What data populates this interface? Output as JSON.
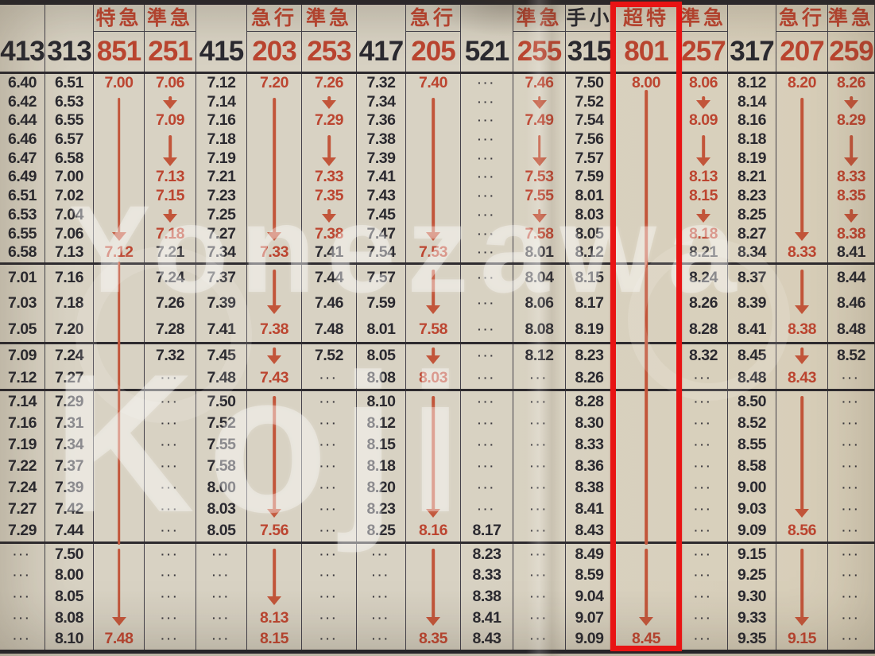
{
  "watermark": {
    "line1": "Yonezawa",
    "line2": "Koji"
  },
  "highlight": {
    "around_train": "801",
    "box_color": "#e81414"
  },
  "colors": {
    "red_ink": "#bc4530",
    "black_ink": "#2b2a30",
    "arrow_red": "#c2553a",
    "paper": "#d8d2c3"
  },
  "legend": {
    "dots_token": "...",
    "black_override_suffix": "|k"
  },
  "columns": [
    {
      "num": "413",
      "ink": "b",
      "label": "",
      "groups": [
        [
          "6.40",
          "6.42",
          "6.44",
          "6.46",
          "6.47",
          "6.49",
          "6.51",
          "6.53",
          "6.55",
          "6.58"
        ],
        [
          "7.01",
          "7.03",
          "7.05"
        ],
        [
          "7.09",
          "7.12"
        ],
        [
          "7.14",
          "7.16",
          "7.19",
          "7.22",
          "7.24",
          "7.27",
          "7.29"
        ],
        [
          "...",
          "...",
          "...",
          "...",
          "..."
        ]
      ],
      "arrows": []
    },
    {
      "num": "313",
      "ink": "b",
      "label": "",
      "groups": [
        [
          "6.51",
          "6.53",
          "6.55",
          "6.57",
          "6.58",
          "7.00",
          "7.02",
          "7.04",
          "7.06",
          "7.13"
        ],
        [
          "7.16",
          "7.18",
          "7.20"
        ],
        [
          "7.24",
          "7.27"
        ],
        [
          "7.29",
          "7.31",
          "7.34",
          "7.37",
          "7.39",
          "7.42",
          "7.44"
        ],
        [
          "7.50",
          "8.00",
          "8.05",
          "8.08",
          "8.10"
        ]
      ],
      "arrows": []
    },
    {
      "num": "851",
      "ink": "r",
      "label": "特急",
      "groups": [
        [
          "7.00",
          "",
          "",
          "",
          "",
          "",
          "",
          "",
          "",
          "7.12"
        ],
        [
          "",
          "",
          ""
        ],
        [
          "",
          ""
        ],
        [
          "",
          "",
          "",
          "",
          "",
          "",
          ""
        ],
        [
          "",
          "",
          "",
          "",
          "7.48"
        ]
      ],
      "arrows": [
        [
          0,
          1,
          8,
          1
        ],
        [
          1,
          0,
          2,
          0
        ],
        [
          2,
          0,
          1,
          0
        ],
        [
          3,
          0,
          6,
          0
        ],
        [
          4,
          0,
          3,
          1
        ]
      ]
    },
    {
      "num": "251",
      "ink": "r",
      "label": "準急",
      "groups": [
        [
          "7.06",
          "",
          "7.09",
          "",
          "",
          "7.13",
          "7.15",
          "",
          "7.18",
          "7.21|k"
        ],
        [
          "7.24|k",
          "7.26|k",
          "7.28|k"
        ],
        [
          "7.32|k",
          "..."
        ],
        [
          "...",
          "...",
          "...",
          "...",
          "...",
          "...",
          "..."
        ],
        [
          "...",
          "...",
          "...",
          "...",
          "..."
        ]
      ],
      "arrows": [
        [
          0,
          1,
          1,
          1
        ],
        [
          0,
          3,
          4,
          1
        ],
        [
          0,
          7,
          7,
          1
        ]
      ]
    },
    {
      "num": "415",
      "ink": "b",
      "label": "",
      "groups": [
        [
          "7.12",
          "7.14",
          "7.16",
          "7.18",
          "7.19",
          "7.21",
          "7.23",
          "7.25",
          "7.27",
          "7.34"
        ],
        [
          "7.37",
          "7.39",
          "7.41"
        ],
        [
          "7.45",
          "7.48"
        ],
        [
          "7.50",
          "7.52",
          "7.55",
          "7.58",
          "8.00",
          "8.03",
          "8.05"
        ],
        [
          "...",
          "...",
          "...",
          "...",
          "..."
        ]
      ],
      "arrows": []
    },
    {
      "num": "203",
      "ink": "r",
      "label": "急行",
      "groups": [
        [
          "7.20",
          "",
          "",
          "",
          "",
          "",
          "",
          "",
          "",
          "7.33"
        ],
        [
          "",
          "",
          "7.38"
        ],
        [
          "",
          "7.43"
        ],
        [
          "",
          "",
          "",
          "",
          "",
          "",
          "7.56"
        ],
        [
          "",
          "",
          "",
          "8.13",
          "8.15"
        ]
      ],
      "arrows": [
        [
          0,
          1,
          8,
          1
        ],
        [
          1,
          0,
          1,
          1
        ],
        [
          2,
          0,
          0,
          1
        ],
        [
          3,
          0,
          5,
          1
        ],
        [
          4,
          0,
          2,
          1
        ]
      ]
    },
    {
      "num": "253",
      "ink": "r",
      "label": "準急",
      "groups": [
        [
          "7.26",
          "",
          "7.29",
          "",
          "",
          "7.33",
          "7.35",
          "",
          "7.38",
          "7.41|k"
        ],
        [
          "7.44|k",
          "7.46|k",
          "7.48|k"
        ],
        [
          "7.52|k",
          "..."
        ],
        [
          "...",
          "...",
          "...",
          "...",
          "...",
          "...",
          "..."
        ],
        [
          "...",
          "...",
          "...",
          "...",
          "..."
        ]
      ],
      "arrows": [
        [
          0,
          1,
          1,
          1
        ],
        [
          0,
          3,
          4,
          1
        ],
        [
          0,
          7,
          7,
          1
        ]
      ]
    },
    {
      "num": "417",
      "ink": "b",
      "label": "",
      "groups": [
        [
          "7.32",
          "7.34",
          "7.36",
          "7.38",
          "7.39",
          "7.41",
          "7.43",
          "7.45",
          "7.47",
          "7.54"
        ],
        [
          "7.57",
          "7.59",
          "8.01"
        ],
        [
          "8.05",
          "8.08"
        ],
        [
          "8.10",
          "8.12",
          "8.15",
          "8.18",
          "8.20",
          "8.23",
          "8.25"
        ],
        [
          "...",
          "...",
          "...",
          "...",
          "..."
        ]
      ],
      "arrows": []
    },
    {
      "num": "205",
      "ink": "r",
      "label": "急行",
      "groups": [
        [
          "7.40",
          "",
          "",
          "",
          "",
          "",
          "",
          "",
          "",
          "7.53"
        ],
        [
          "",
          "",
          "7.58"
        ],
        [
          "",
          "8.03"
        ],
        [
          "",
          "",
          "",
          "",
          "",
          "",
          "8.16"
        ],
        [
          "",
          "",
          "",
          "",
          "8.35"
        ]
      ],
      "arrows": [
        [
          0,
          1,
          8,
          1
        ],
        [
          1,
          0,
          1,
          1
        ],
        [
          2,
          0,
          0,
          1
        ],
        [
          3,
          0,
          5,
          1
        ],
        [
          4,
          0,
          3,
          1
        ]
      ]
    },
    {
      "num": "521",
      "ink": "b",
      "label": "",
      "groups": [
        [
          "...",
          "...",
          "...",
          "...",
          "...",
          "...",
          "...",
          "...",
          "...",
          "..."
        ],
        [
          "...",
          "...",
          "..."
        ],
        [
          "...",
          "..."
        ],
        [
          "...",
          "...",
          "...",
          "...",
          "...",
          "...",
          "8.17"
        ],
        [
          "8.23",
          "8.33",
          "8.38",
          "8.41",
          "8.43"
        ]
      ],
      "arrows": []
    },
    {
      "num": "255",
      "ink": "r",
      "label": "準急",
      "groups": [
        [
          "7.46",
          "",
          "7.49",
          "",
          "",
          "7.53",
          "7.55",
          "",
          "7.58",
          "8.01|k"
        ],
        [
          "8.04|k",
          "8.06|k",
          "8.08|k"
        ],
        [
          "8.12|k",
          "..."
        ],
        [
          "...",
          "...",
          "...",
          "...",
          "...",
          "...",
          "..."
        ],
        [
          "...",
          "...",
          "...",
          "...",
          "..."
        ]
      ],
      "arrows": [
        [
          0,
          1,
          1,
          1
        ],
        [
          0,
          3,
          4,
          1
        ],
        [
          0,
          7,
          7,
          1
        ]
      ]
    },
    {
      "num": "315",
      "ink": "b",
      "label": "手小",
      "label_ink": "b",
      "groups": [
        [
          "7.50",
          "7.52",
          "7.54",
          "7.56",
          "7.57",
          "7.59",
          "8.01",
          "8.03",
          "8.05",
          "8.12"
        ],
        [
          "8.15",
          "8.17",
          "8.19"
        ],
        [
          "8.23",
          "8.26"
        ],
        [
          "8.28",
          "8.30",
          "8.33",
          "8.36",
          "8.38",
          "8.41",
          "8.43"
        ],
        [
          "8.49",
          "8.59",
          "9.04",
          "9.07",
          "9.09"
        ]
      ],
      "arrows": []
    },
    {
      "num": "801",
      "ink": "r",
      "label": "超特",
      "groups": [
        [
          "8.00",
          "",
          "",
          "",
          "",
          "",
          "",
          "",
          "",
          ""
        ],
        [
          "",
          "",
          ""
        ],
        [
          "",
          ""
        ],
        [
          "",
          "",
          "",
          "",
          "",
          "",
          ""
        ],
        [
          "",
          "",
          "",
          "",
          "8.45"
        ]
      ],
      "arrows": [
        [
          0,
          1,
          9,
          0
        ],
        [
          1,
          0,
          2,
          0
        ],
        [
          2,
          0,
          1,
          0
        ],
        [
          3,
          0,
          6,
          0
        ],
        [
          4,
          0,
          3,
          1
        ]
      ]
    },
    {
      "num": "257",
      "ink": "r",
      "label": "準急",
      "groups": [
        [
          "8.06",
          "",
          "8.09",
          "",
          "",
          "8.13",
          "8.15",
          "",
          "8.18",
          "8.21|k"
        ],
        [
          "8.24|k",
          "8.26|k",
          "8.28|k"
        ],
        [
          "8.32|k",
          "..."
        ],
        [
          "...",
          "...",
          "...",
          "...",
          "...",
          "...",
          "..."
        ],
        [
          "...",
          "...",
          "...",
          "...",
          "..."
        ]
      ],
      "arrows": [
        [
          0,
          1,
          1,
          1
        ],
        [
          0,
          3,
          4,
          1
        ],
        [
          0,
          7,
          7,
          1
        ]
      ]
    },
    {
      "num": "317",
      "ink": "b",
      "label": "",
      "groups": [
        [
          "8.12",
          "8.14",
          "8.16",
          "8.18",
          "8.19",
          "8.21",
          "8.23",
          "8.25",
          "8.27",
          "8.34"
        ],
        [
          "8.37",
          "8.39",
          "8.41"
        ],
        [
          "8.45",
          "8.48"
        ],
        [
          "8.50",
          "8.52",
          "8.55",
          "8.58",
          "9.00",
          "9.03",
          "9.09"
        ],
        [
          "9.15",
          "9.25",
          "9.30",
          "9.33",
          "9.35"
        ]
      ],
      "arrows": []
    },
    {
      "num": "207",
      "ink": "r",
      "label": "急行",
      "groups": [
        [
          "8.20",
          "",
          "",
          "",
          "",
          "",
          "",
          "",
          "",
          "8.33"
        ],
        [
          "",
          "",
          "8.38"
        ],
        [
          "",
          "8.43"
        ],
        [
          "",
          "",
          "",
          "",
          "",
          "",
          "8.56"
        ],
        [
          "",
          "",
          "",
          "",
          "9.15"
        ]
      ],
      "arrows": [
        [
          0,
          1,
          8,
          1
        ],
        [
          1,
          0,
          1,
          1
        ],
        [
          2,
          0,
          0,
          1
        ],
        [
          3,
          0,
          5,
          1
        ],
        [
          4,
          0,
          3,
          1
        ]
      ]
    },
    {
      "num": "259",
      "ink": "r",
      "label": "準急",
      "groups": [
        [
          "8.26",
          "",
          "8.29",
          "",
          "",
          "8.33",
          "8.35",
          "",
          "8.38",
          "8.41|k"
        ],
        [
          "8.44|k",
          "8.46|k",
          "8.48|k"
        ],
        [
          "8.52|k",
          "..."
        ],
        [
          "...",
          "...",
          "...",
          "...",
          "...",
          "...",
          "..."
        ],
        [
          "...",
          "...",
          "...",
          "...",
          "..."
        ]
      ],
      "arrows": [
        [
          0,
          1,
          1,
          1
        ],
        [
          0,
          3,
          4,
          1
        ],
        [
          0,
          7,
          7,
          1
        ]
      ]
    }
  ]
}
